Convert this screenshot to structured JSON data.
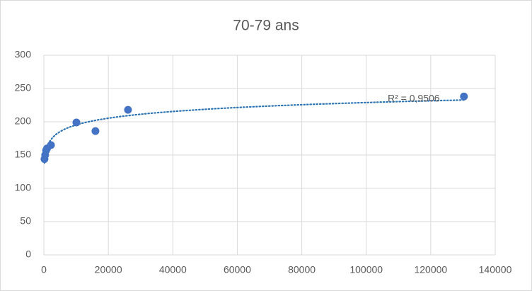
{
  "chart_data": {
    "type": "scatter",
    "title": "70-79 ans",
    "x": [
      200,
      400,
      700,
      1000,
      2200,
      10100,
      16000,
      26100,
      130300
    ],
    "values": [
      144,
      150,
      157,
      160,
      165,
      199,
      186,
      218,
      238
    ],
    "color": "#4472c4",
    "trendline": {
      "type": "log",
      "color": "#2e75b6",
      "label": "R² = 0,9506"
    },
    "xlim": [
      0,
      140000
    ],
    "xticks": [
      0,
      20000,
      40000,
      60000,
      80000,
      100000,
      120000,
      140000
    ],
    "ylim": [
      0,
      300
    ],
    "yticks": [
      0,
      50,
      100,
      150,
      200,
      250,
      300
    ],
    "grid": true
  }
}
